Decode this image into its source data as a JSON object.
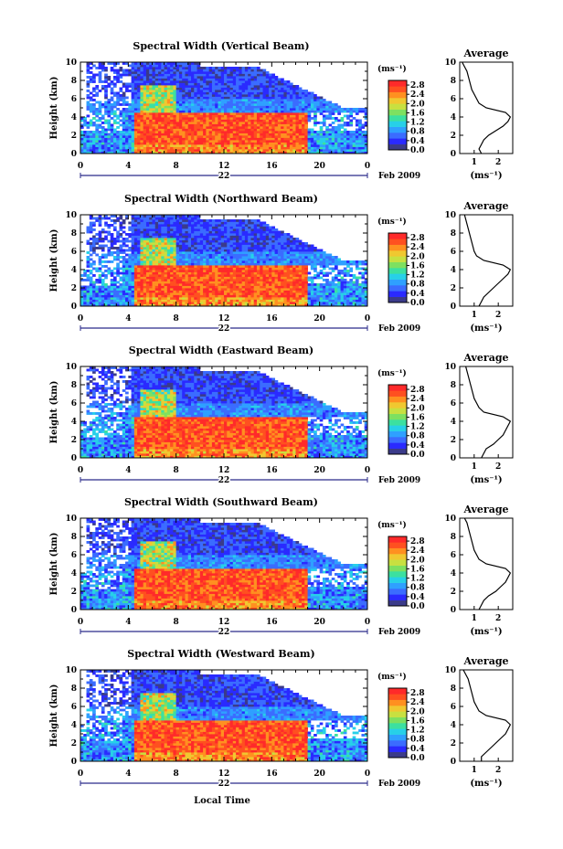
{
  "figure": {
    "xlabel": "Local Time",
    "date_label": "Feb 2009",
    "day_label": "22",
    "colorbar_unit": "(ms⁻¹)",
    "avg_title": "Average",
    "avg_xlabel": "(ms⁻¹)",
    "ylabel": "Height (km)"
  },
  "colors": {
    "scale": [
      "#3b3b8a",
      "#2a2aff",
      "#3b6cff",
      "#2fa0ff",
      "#27d0e8",
      "#3ce0a0",
      "#7ee060",
      "#c8e040",
      "#f0c830",
      "#ff9020",
      "#ff5020",
      "#ff2a2a"
    ]
  },
  "chart_data": [
    {
      "type": "heatmap",
      "title": "Spectral Width (Vertical Beam)",
      "x_ticks": [
        "0",
        "4",
        "8",
        "12",
        "16",
        "20",
        "0"
      ],
      "y_ticks": [
        "0",
        "2",
        "4",
        "6",
        "8",
        "10"
      ],
      "xlim": [
        0,
        24
      ],
      "ylim": [
        0,
        10
      ],
      "colorbar": {
        "ticks": [
          "0.0",
          "0.4",
          "0.8",
          "1.2",
          "1.6",
          "2.0",
          "2.4",
          "2.8"
        ],
        "range": [
          0,
          3.0
        ]
      },
      "average": {
        "x_ticks": [
          "1",
          "2"
        ],
        "xlim": [
          0.4,
          2.6
        ],
        "heights": [
          0,
          0.5,
          1,
          1.5,
          2,
          2.5,
          3,
          3.5,
          4,
          4.5,
          5,
          5.5,
          6,
          6.5,
          7,
          7.5,
          8,
          8.5,
          9,
          9.5,
          10
        ],
        "values": [
          1.3,
          1.2,
          1.3,
          1.4,
          1.6,
          1.9,
          2.2,
          2.4,
          2.5,
          2.3,
          1.5,
          1.2,
          1.1,
          1.0,
          0.9,
          0.85,
          0.8,
          0.75,
          0.7,
          0.6,
          0.5
        ]
      }
    },
    {
      "type": "heatmap",
      "title": "Spectral Width (Northward Beam)",
      "x_ticks": [
        "0",
        "4",
        "8",
        "12",
        "16",
        "20",
        "0"
      ],
      "y_ticks": [
        "0",
        "2",
        "4",
        "6",
        "8",
        "10"
      ],
      "xlim": [
        0,
        24
      ],
      "ylim": [
        0,
        10
      ],
      "colorbar": {
        "ticks": [
          "0.0",
          "0.4",
          "0.8",
          "1.2",
          "1.6",
          "2.0",
          "2.4",
          "2.8"
        ],
        "range": [
          0,
          3.0
        ]
      },
      "average": {
        "x_ticks": [
          "1",
          "2"
        ],
        "xlim": [
          0.4,
          2.6
        ],
        "heights": [
          0,
          0.5,
          1,
          1.5,
          2,
          2.5,
          3,
          3.5,
          4,
          4.5,
          5,
          5.5,
          6,
          6.5,
          7,
          7.5,
          8,
          8.5,
          9,
          9.5,
          10
        ],
        "values": [
          1.2,
          1.3,
          1.4,
          1.6,
          1.8,
          2.0,
          2.2,
          2.4,
          2.5,
          2.2,
          1.4,
          1.1,
          1.0,
          0.95,
          0.9,
          0.85,
          0.8,
          0.75,
          0.7,
          0.65,
          0.6
        ]
      }
    },
    {
      "type": "heatmap",
      "title": "Spectral Width (Eastward Beam)",
      "x_ticks": [
        "0",
        "4",
        "8",
        "12",
        "16",
        "20",
        "0"
      ],
      "y_ticks": [
        "0",
        "2",
        "4",
        "6",
        "8",
        "10"
      ],
      "xlim": [
        0,
        24
      ],
      "ylim": [
        0,
        10
      ],
      "colorbar": {
        "ticks": [
          "0.0",
          "0.4",
          "0.8",
          "1.2",
          "1.6",
          "2.0",
          "2.4",
          "2.8"
        ],
        "range": [
          0,
          3.0
        ]
      },
      "average": {
        "x_ticks": [
          "1",
          "2"
        ],
        "xlim": [
          0.4,
          2.6
        ],
        "heights": [
          0,
          0.5,
          1,
          1.5,
          2,
          2.5,
          3,
          3.5,
          4,
          4.5,
          5,
          5.5,
          6,
          6.5,
          7,
          7.5,
          8,
          8.5,
          9,
          9.5,
          10
        ],
        "values": [
          1.3,
          1.4,
          1.5,
          1.8,
          2.0,
          2.2,
          2.3,
          2.4,
          2.5,
          2.2,
          1.4,
          1.2,
          1.1,
          1.0,
          0.95,
          0.9,
          0.85,
          0.8,
          0.75,
          0.7,
          0.65
        ]
      }
    },
    {
      "type": "heatmap",
      "title": "Spectral Width (Southward Beam)",
      "x_ticks": [
        "0",
        "4",
        "8",
        "12",
        "16",
        "20",
        "0"
      ],
      "y_ticks": [
        "0",
        "2",
        "4",
        "6",
        "8",
        "10"
      ],
      "xlim": [
        0,
        24
      ],
      "ylim": [
        0,
        10
      ],
      "colorbar": {
        "ticks": [
          "0.0",
          "0.4",
          "0.8",
          "1.2",
          "1.6",
          "2.0",
          "2.4",
          "2.8"
        ],
        "range": [
          0,
          3.0
        ]
      },
      "average": {
        "x_ticks": [
          "1",
          "2"
        ],
        "xlim": [
          0.4,
          2.6
        ],
        "heights": [
          0,
          0.5,
          1,
          1.5,
          2,
          2.5,
          3,
          3.5,
          4,
          4.5,
          5,
          5.5,
          6,
          6.5,
          7,
          7.5,
          8,
          8.5,
          9,
          9.5,
          10
        ],
        "values": [
          1.2,
          1.3,
          1.4,
          1.6,
          1.9,
          2.1,
          2.3,
          2.4,
          2.5,
          2.3,
          1.5,
          1.2,
          1.1,
          1.0,
          0.95,
          0.9,
          0.85,
          0.8,
          0.75,
          0.7,
          0.6
        ]
      }
    },
    {
      "type": "heatmap",
      "title": "Spectral Width (Westward Beam)",
      "x_ticks": [
        "0",
        "4",
        "8",
        "12",
        "16",
        "20",
        "0"
      ],
      "y_ticks": [
        "0",
        "2",
        "4",
        "6",
        "8",
        "10"
      ],
      "xlim": [
        0,
        24
      ],
      "ylim": [
        0,
        10
      ],
      "colorbar": {
        "ticks": [
          "0.0",
          "0.4",
          "0.8",
          "1.2",
          "1.6",
          "2.0",
          "2.4",
          "2.8"
        ],
        "range": [
          0,
          3.0
        ]
      },
      "average": {
        "x_ticks": [
          "1",
          "2"
        ],
        "xlim": [
          0.4,
          2.6
        ],
        "heights": [
          0,
          0.5,
          1,
          1.5,
          2,
          2.5,
          3,
          3.5,
          4,
          4.5,
          5,
          5.5,
          6,
          6.5,
          7,
          7.5,
          8,
          8.5,
          9,
          9.5,
          10
        ],
        "values": [
          1.3,
          1.3,
          1.5,
          1.7,
          1.9,
          2.1,
          2.3,
          2.4,
          2.5,
          2.3,
          1.5,
          1.2,
          1.1,
          1.0,
          0.95,
          0.9,
          0.85,
          0.8,
          0.75,
          0.65,
          0.55
        ]
      }
    }
  ]
}
